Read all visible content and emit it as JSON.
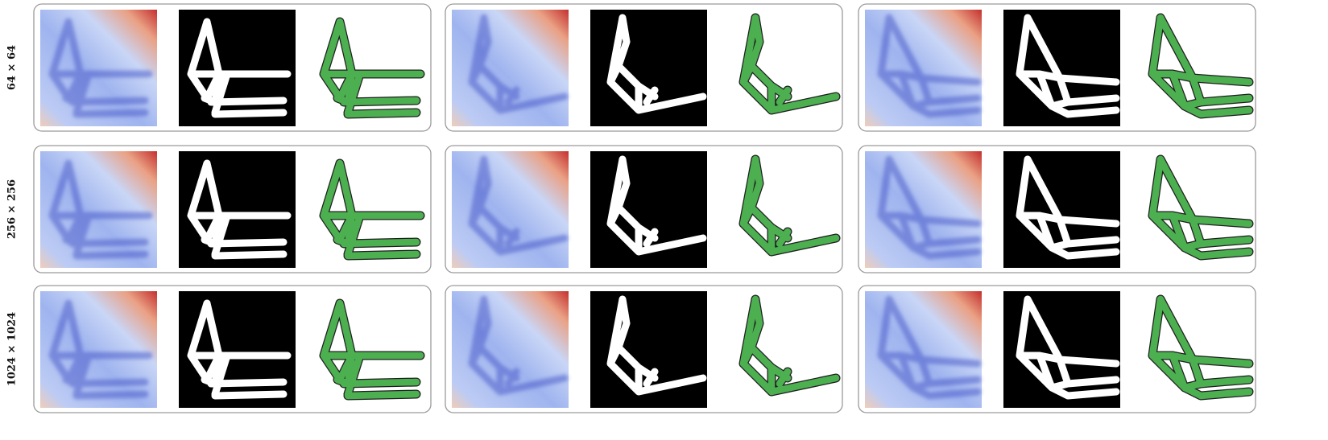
{
  "row_labels": [
    "64 × 64",
    "256 × 256",
    "1024 × 1024"
  ]
}
